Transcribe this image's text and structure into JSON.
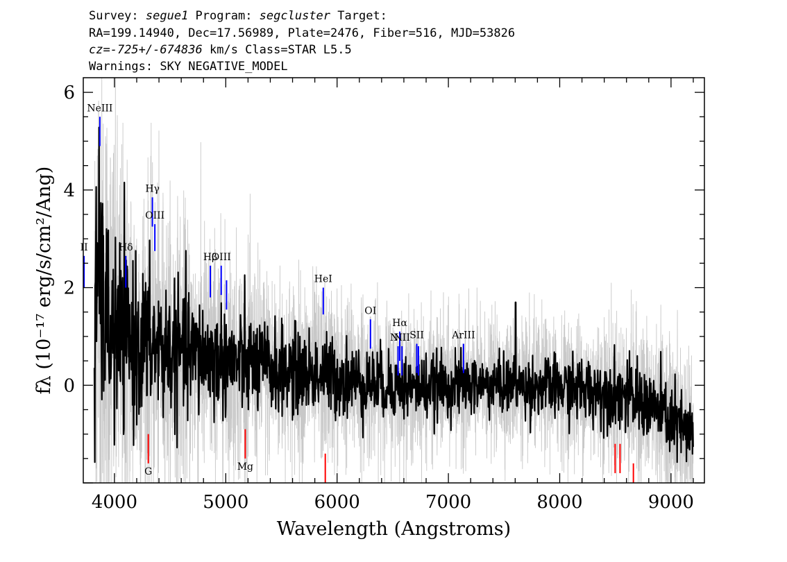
{
  "header": {
    "survey_label": "Survey: ",
    "survey": "segue1",
    "program_label": " Program: ",
    "program": "segcluster",
    "target_label": " Target:",
    "line2": "RA=199.14940, Dec=17.56989, Plate=2476, Fiber=516, MJD=53826",
    "cz": "cz=-725+/-674836",
    "cz_suffix": " km/s Class=STAR L5.5",
    "line4": "Warnings: SKY NEGATIVE_MODEL"
  },
  "chart_data": {
    "type": "line",
    "xlabel": "Wavelength (Angstroms)",
    "ylabel": "fλ (10⁻¹⁷ erg/s/cm²/Ang)",
    "xlim": [
      3720,
      9300
    ],
    "ylim": [
      -2.0,
      6.3
    ],
    "x_ticks": [
      4000,
      5000,
      6000,
      7000,
      8000,
      9000
    ],
    "y_ticks": [
      0,
      2,
      4,
      6
    ],
    "grid": false,
    "series": [
      {
        "role": "error",
        "color": "#c8c8c8",
        "sigma_profile": {
          "x": [
            3800,
            3900,
            4000,
            4200,
            4500,
            5000,
            5500,
            6000,
            6500,
            7000,
            7500,
            8000,
            8500,
            9000,
            9200
          ],
          "sigma": [
            3.0,
            2.5,
            2.2,
            1.8,
            1.5,
            1.2,
            1.0,
            0.9,
            0.75,
            0.7,
            0.65,
            0.7,
            0.8,
            0.85,
            0.9
          ]
        }
      },
      {
        "role": "flux",
        "color": "#000000",
        "trend": {
          "x": [
            3820,
            3850,
            3900,
            4000,
            4100,
            4300,
            4500,
            4800,
            5000,
            5500,
            5900,
            6300,
            6700,
            7000,
            7500,
            8000,
            8500,
            8800,
            9000,
            9200
          ],
          "y": [
            0.3,
            2.5,
            1.5,
            1.0,
            0.9,
            0.85,
            0.7,
            0.6,
            0.5,
            0.3,
            0.2,
            0.05,
            -0.05,
            0.0,
            0.0,
            -0.05,
            -0.15,
            -0.4,
            -0.7,
            -1.1
          ]
        },
        "spike": {
          "x": 7605,
          "y": 1.7
        }
      }
    ],
    "emission_lines": [
      {
        "label": "II",
        "x": 3727,
        "y1": 2.0,
        "y2": 2.65
      },
      {
        "label": "NeIII",
        "x": 3869,
        "y1": 4.9,
        "y2": 5.5
      },
      {
        "label": "Hδ",
        "x": 4102,
        "y1": 2.0,
        "y2": 2.65
      },
      {
        "label": "Hγ",
        "x": 4341,
        "y1": 3.25,
        "y2": 3.85
      },
      {
        "label": "OIII",
        "x": 4363,
        "y1": 2.75,
        "y2": 3.3
      },
      {
        "label": "Hβ",
        "x": 4861,
        "y1": 1.8,
        "y2": 2.45
      },
      {
        "label": "OIII",
        "x": 4959,
        "y1": 1.85,
        "y2": 2.45
      },
      {
        "label": "",
        "x": 5007,
        "y1": 1.55,
        "y2": 2.15
      },
      {
        "label": "HeI",
        "x": 5876,
        "y1": 1.45,
        "y2": 2.0
      },
      {
        "label": "OI",
        "x": 6300,
        "y1": 0.75,
        "y2": 1.35
      },
      {
        "label": "NII",
        "x": 6548,
        "y1": 0.2,
        "y2": 0.8
      },
      {
        "label": "Hα",
        "x": 6563,
        "y1": 0.5,
        "y2": 1.1
      },
      {
        "label": "NII",
        "x": 6583,
        "y1": 0.2,
        "y2": 0.8
      },
      {
        "label": "SII",
        "x": 6716,
        "y1": 0.25,
        "y2": 0.85
      },
      {
        "label": "",
        "x": 6731,
        "y1": 0.2,
        "y2": 0.8
      },
      {
        "label": "ArIII",
        "x": 7136,
        "y1": 0.25,
        "y2": 0.85
      }
    ],
    "absorption_lines": [
      {
        "label": "G",
        "x": 4304,
        "y1": -1.6,
        "y2": -1.0
      },
      {
        "label": "Mg",
        "x": 5175,
        "y1": -1.5,
        "y2": -0.9
      },
      {
        "label": "",
        "x": 5894,
        "y1": -2.0,
        "y2": -1.4
      },
      {
        "label": "",
        "x": 8498,
        "y1": -1.8,
        "y2": -1.2
      },
      {
        "label": "",
        "x": 8542,
        "y1": -1.8,
        "y2": -1.2
      },
      {
        "label": "",
        "x": 8662,
        "y1": -2.0,
        "y2": -1.6
      }
    ],
    "emission_color": "#0000ff",
    "absorption_color": "#ff0000"
  }
}
